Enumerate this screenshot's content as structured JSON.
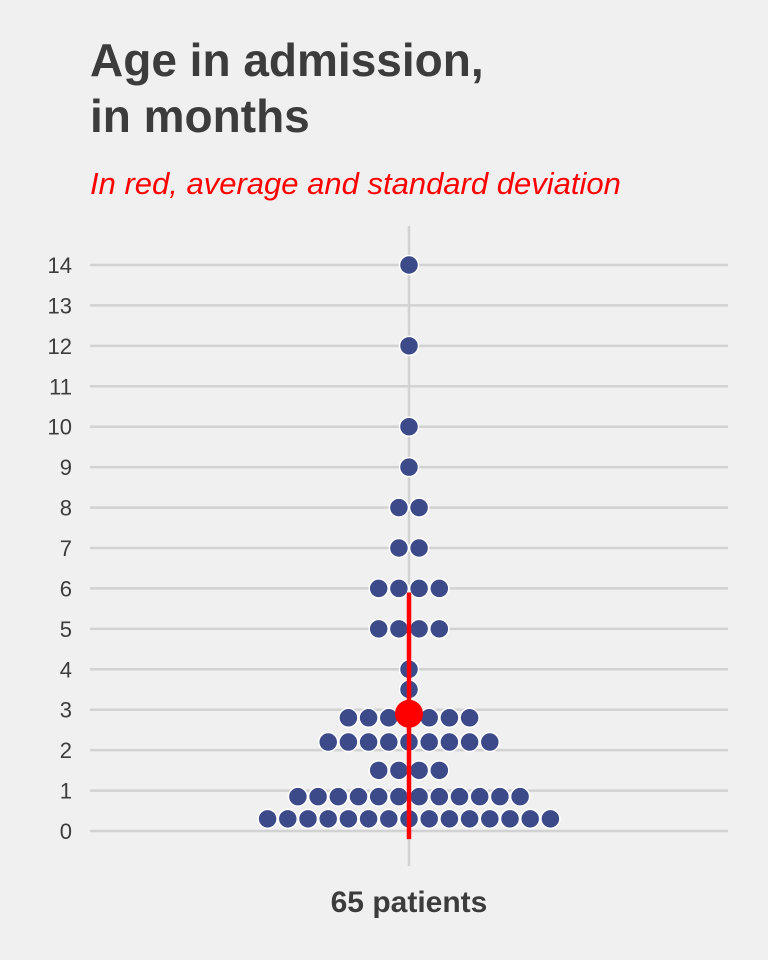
{
  "chart_data": {
    "type": "scatter",
    "title": [
      "Age in admission,",
      "in months"
    ],
    "subtitle": "In red, average and standard deviation",
    "xlabel": "65 patients",
    "ylim": [
      0,
      14
    ],
    "yticks": [
      0,
      1,
      2,
      3,
      4,
      5,
      6,
      7,
      8,
      9,
      10,
      11,
      12,
      13,
      14
    ],
    "grid": true,
    "colors": {
      "points": "#3d4a8a",
      "summary": "#ff0000",
      "grid": "#d2d2d2"
    },
    "points_age_months": [
      0.3,
      0.3,
      0.3,
      0.3,
      0.3,
      0.3,
      0.3,
      0.3,
      0.3,
      0.3,
      0.3,
      0.3,
      0.3,
      0.3,
      0.3,
      0.85,
      0.85,
      0.85,
      0.85,
      0.85,
      0.85,
      0.85,
      0.85,
      0.85,
      0.85,
      0.85,
      0.85,
      1.5,
      1.5,
      1.5,
      1.5,
      2.2,
      2.2,
      2.2,
      2.2,
      2.2,
      2.2,
      2.2,
      2.2,
      2.2,
      2.8,
      2.8,
      2.8,
      2.8,
      2.8,
      2.8,
      2.8,
      3.5,
      4,
      5,
      5,
      5,
      5,
      6,
      6,
      6,
      6,
      7,
      7,
      8,
      8,
      9,
      10,
      12,
      14
    ],
    "summary": {
      "mean": 2.9,
      "sd_low": -0.2,
      "sd_high": 5.9
    }
  }
}
